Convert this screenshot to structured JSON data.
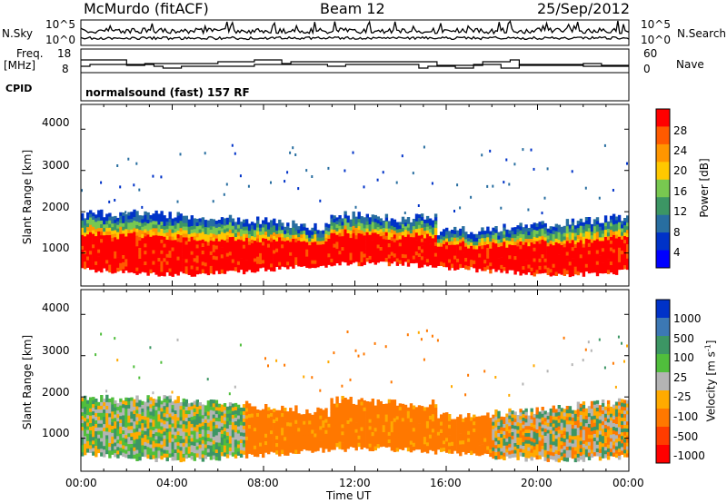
{
  "header": {
    "station": "McMurdo (fitACF)",
    "beam": "Beam 12",
    "date": "25/Sep/2012"
  },
  "top_panels": {
    "nsky_label": "N.Sky",
    "nsearch_label": "N.Search",
    "freq_label": "Freq.",
    "freq_unit": "[MHz]",
    "nave_label": "Nave",
    "cpid_label": "CPID",
    "cpid_value": "normalsound (fast) 157 RF",
    "count_ticks": [
      "10^5",
      "10^0"
    ],
    "freq_ticks": [
      "18",
      "8"
    ],
    "nave_ticks": [
      "60",
      "0"
    ]
  },
  "chart_data": [
    {
      "type": "heatmap",
      "name": "power",
      "ylabel": "Slant Range [km]",
      "xlabel": "",
      "ylim": [
        200,
        4600
      ],
      "yticks": [
        "4000",
        "3000",
        "2000",
        "1000"
      ],
      "colorbar_label": "Power [dB]",
      "colorbar_ticks": [
        "28",
        "24",
        "20",
        "16",
        "12",
        "8",
        "4"
      ],
      "colorbar_colors": [
        "#ff0000",
        "#ff5a00",
        "#ff9600",
        "#ffc800",
        "#78c850",
        "#3c9664",
        "#286ea0",
        "#0032c8",
        "#0000ff"
      ]
    },
    {
      "type": "heatmap",
      "name": "velocity",
      "ylabel": "Slant Range [km]",
      "xlabel": "Time UT",
      "ylim": [
        200,
        4600
      ],
      "yticks": [
        "4000",
        "3000",
        "2000",
        "1000"
      ],
      "xticks": [
        "00:00",
        "04:00",
        "08:00",
        "12:00",
        "16:00",
        "20:00",
        "00:00"
      ],
      "colorbar_label": "Velocity [m s",
      "colorbar_label_sup": "-1",
      "colorbar_label_close": "]",
      "colorbar_ticks": [
        "1000",
        "500",
        "100",
        "25",
        "-25",
        "-100",
        "-500",
        "-1000"
      ],
      "colorbar_colors": [
        "#0032c8",
        "#3c78b4",
        "#3c9664",
        "#50be3c",
        "#b4b4b4",
        "#ffaa00",
        "#ff7800",
        "#ff3c00",
        "#ff0000"
      ]
    }
  ]
}
